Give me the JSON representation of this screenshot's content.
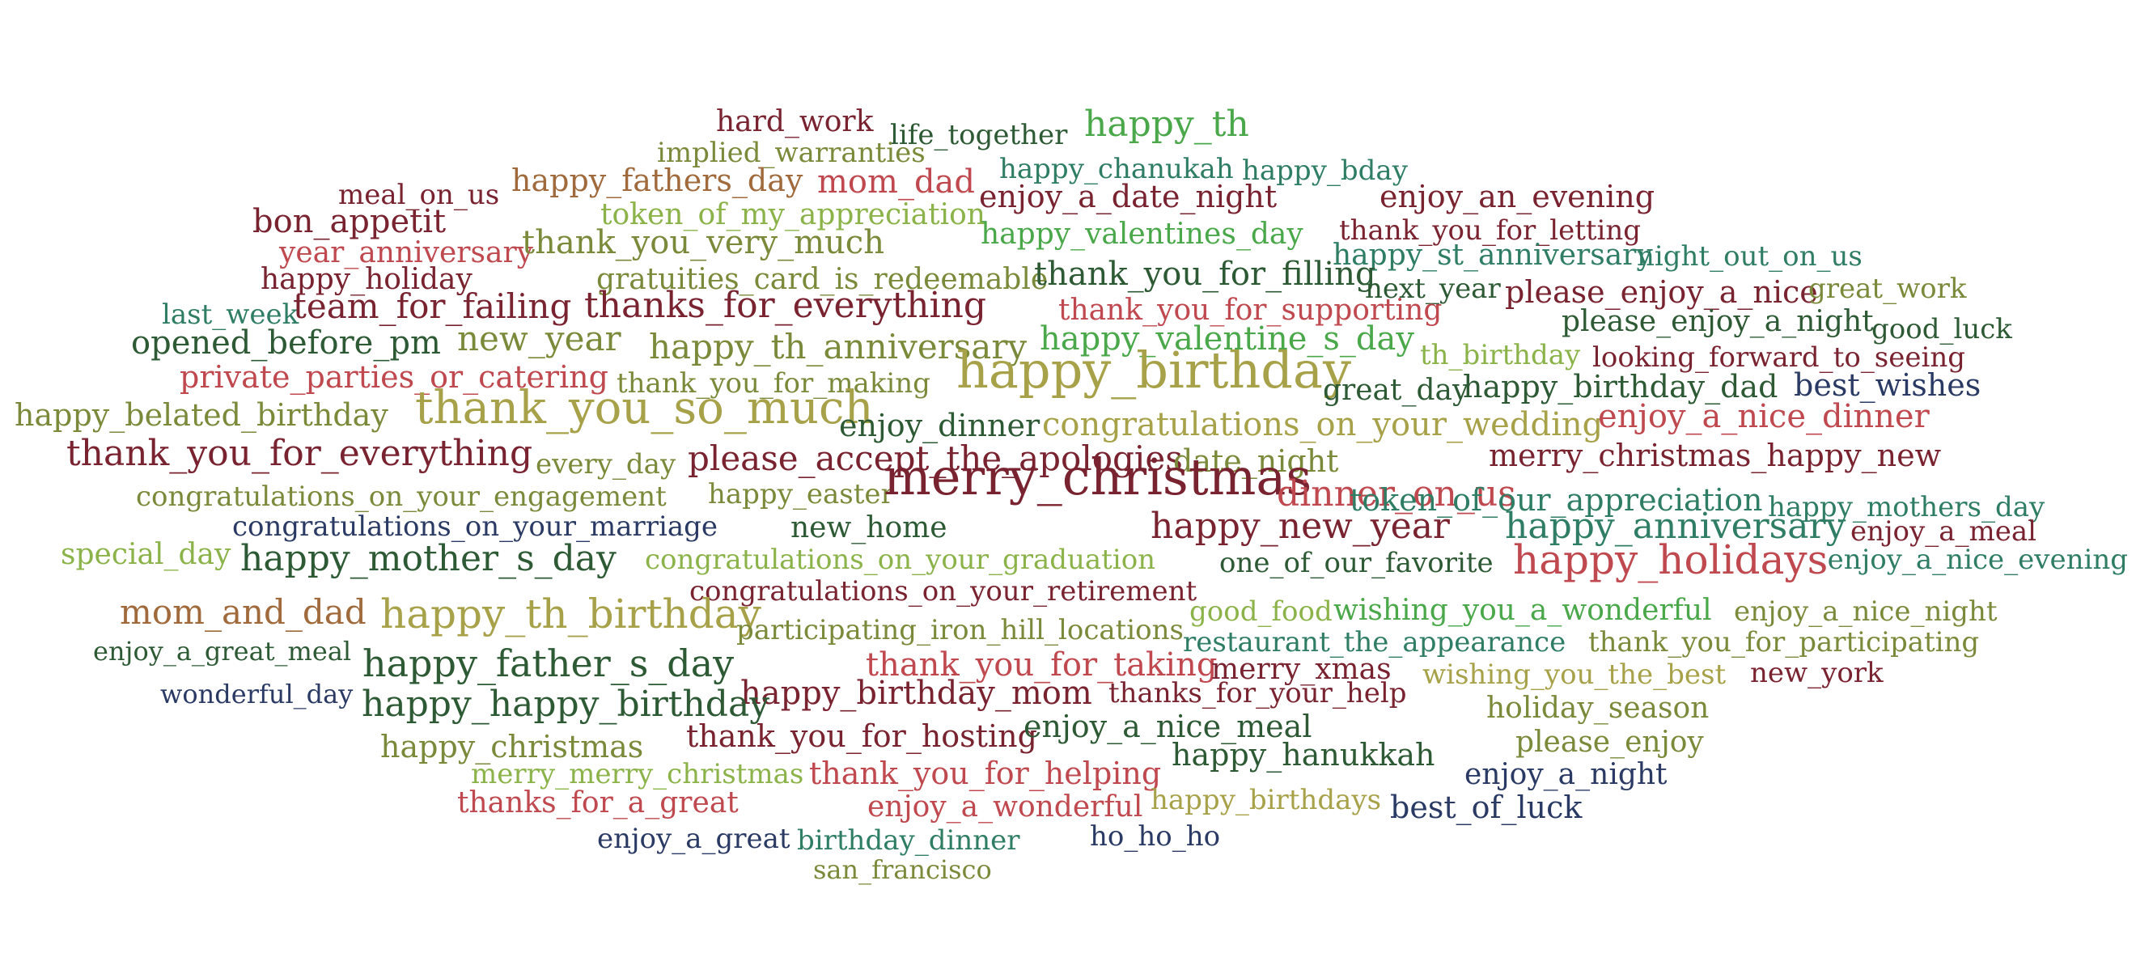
{
  "palette": {
    "maroon": "#7a2330",
    "rose": "#c0484f",
    "brown": "#a06a3c",
    "olive": "#7a8a3a",
    "khaki": "#a7a24a",
    "lightgreen": "#8bb34a",
    "green": "#4aa84a",
    "teal": "#2f7d64",
    "darkgreen": "#2d5a34",
    "navy": "#2a3a64"
  },
  "words": [
    {
      "text": "hard_work",
      "color": "maroon"
    },
    {
      "text": "life_together",
      "color": "darkgreen"
    },
    {
      "text": "happy_th",
      "color": "green"
    },
    {
      "text": "implied_warranties",
      "color": "olive"
    },
    {
      "text": "happy_chanukah",
      "color": "teal"
    },
    {
      "text": "happy_bday",
      "color": "teal"
    },
    {
      "text": "meal_on_us",
      "color": "maroon"
    },
    {
      "text": "happy_fathers_day",
      "color": "brown"
    },
    {
      "text": "mom_dad",
      "color": "rose"
    },
    {
      "text": "enjoy_a_date_night",
      "color": "maroon"
    },
    {
      "text": "enjoy_an_evening",
      "color": "maroon"
    },
    {
      "text": "token_of_my_appreciation",
      "color": "lightgreen"
    },
    {
      "text": "bon_appetit",
      "color": "maroon"
    },
    {
      "text": "happy_valentines_day",
      "color": "green"
    },
    {
      "text": "thank_you_for_letting",
      "color": "maroon"
    },
    {
      "text": "year_anniversary",
      "color": "rose"
    },
    {
      "text": "thank_you_very_much",
      "color": "olive"
    },
    {
      "text": "happy_st_anniversary",
      "color": "teal"
    },
    {
      "text": "night_out_on_us",
      "color": "teal"
    },
    {
      "text": "happy_holiday",
      "color": "maroon"
    },
    {
      "text": "gratuities_card_is_redeemable",
      "color": "olive"
    },
    {
      "text": "thank_you_for_filling",
      "color": "darkgreen"
    },
    {
      "text": "next_year",
      "color": "darkgreen"
    },
    {
      "text": "please_enjoy_a_nice",
      "color": "maroon"
    },
    {
      "text": "great_work",
      "color": "olive"
    },
    {
      "text": "last_week",
      "color": "teal"
    },
    {
      "text": "team_for_failing",
      "color": "maroon"
    },
    {
      "text": "thanks_for_everything",
      "color": "maroon"
    },
    {
      "text": "thank_you_for_supporting",
      "color": "rose"
    },
    {
      "text": "please_enjoy_a_night",
      "color": "darkgreen"
    },
    {
      "text": "good_luck",
      "color": "darkgreen"
    },
    {
      "text": "opened_before_pm",
      "color": "darkgreen"
    },
    {
      "text": "new_year",
      "color": "olive"
    },
    {
      "text": "happy_th_anniversary",
      "color": "olive"
    },
    {
      "text": "happy_valentine_s_day",
      "color": "green"
    },
    {
      "text": "th_birthday",
      "color": "lightgreen"
    },
    {
      "text": "looking_forward_to_seeing",
      "color": "maroon"
    },
    {
      "text": "private_parties_or_catering",
      "color": "rose"
    },
    {
      "text": "thank_you_for_making",
      "color": "olive"
    },
    {
      "text": "happy_birthday",
      "color": "khaki"
    },
    {
      "text": "great_day",
      "color": "darkgreen"
    },
    {
      "text": "happy_birthday_dad",
      "color": "darkgreen"
    },
    {
      "text": "best_wishes",
      "color": "navy"
    },
    {
      "text": "happy_belated_birthday",
      "color": "olive"
    },
    {
      "text": "thank_you_so_much",
      "color": "khaki"
    },
    {
      "text": "enjoy_dinner",
      "color": "darkgreen"
    },
    {
      "text": "congratulations_on_your_wedding",
      "color": "khaki"
    },
    {
      "text": "enjoy_a_nice_dinner",
      "color": "rose"
    },
    {
      "text": "thank_you_for_everything",
      "color": "maroon"
    },
    {
      "text": "every_day",
      "color": "olive"
    },
    {
      "text": "please_accept_the_apologies",
      "color": "maroon"
    },
    {
      "text": "date_night",
      "color": "olive"
    },
    {
      "text": "merry_christmas_happy_new",
      "color": "maroon"
    },
    {
      "text": "congratulations_on_your_engagement",
      "color": "olive"
    },
    {
      "text": "happy_easter",
      "color": "olive"
    },
    {
      "text": "merry_christmas",
      "color": "maroon"
    },
    {
      "text": "dinner_on_us",
      "color": "rose"
    },
    {
      "text": "token_of_our_appreciation",
      "color": "teal"
    },
    {
      "text": "happy_mothers_day",
      "color": "teal"
    },
    {
      "text": "congratulations_on_your_marriage",
      "color": "navy"
    },
    {
      "text": "new_home",
      "color": "darkgreen"
    },
    {
      "text": "happy_new_year",
      "color": "maroon"
    },
    {
      "text": "happy_anniversary",
      "color": "teal"
    },
    {
      "text": "enjoy_a_meal",
      "color": "maroon"
    },
    {
      "text": "special_day",
      "color": "lightgreen"
    },
    {
      "text": "happy_mother_s_day",
      "color": "darkgreen"
    },
    {
      "text": "congratulations_on_your_graduation",
      "color": "lightgreen"
    },
    {
      "text": "one_of_our_favorite",
      "color": "darkgreen"
    },
    {
      "text": "happy_holidays",
      "color": "rose"
    },
    {
      "text": "enjoy_a_nice_evening",
      "color": "teal"
    },
    {
      "text": "congratulations_on_your_retirement",
      "color": "maroon"
    },
    {
      "text": "mom_and_dad",
      "color": "brown"
    },
    {
      "text": "happy_th_birthday",
      "color": "khaki"
    },
    {
      "text": "good_food",
      "color": "lightgreen"
    },
    {
      "text": "wishing_you_a_wonderful",
      "color": "green"
    },
    {
      "text": "enjoy_a_nice_night",
      "color": "olive"
    },
    {
      "text": "participating_iron_hill_locations",
      "color": "olive"
    },
    {
      "text": "enjoy_a_great_meal",
      "color": "darkgreen"
    },
    {
      "text": "restaurant_the_appearance",
      "color": "teal"
    },
    {
      "text": "thank_you_for_participating",
      "color": "olive"
    },
    {
      "text": "happy_father_s_day",
      "color": "darkgreen"
    },
    {
      "text": "thank_you_for_taking",
      "color": "rose"
    },
    {
      "text": "merry_xmas",
      "color": "maroon"
    },
    {
      "text": "wishing_you_the_best",
      "color": "khaki"
    },
    {
      "text": "new_york",
      "color": "maroon"
    },
    {
      "text": "wonderful_day",
      "color": "navy"
    },
    {
      "text": "happy_birthday_mom",
      "color": "maroon"
    },
    {
      "text": "thanks_for_your_help",
      "color": "maroon"
    },
    {
      "text": "happy_happy_birthday",
      "color": "darkgreen"
    },
    {
      "text": "holiday_season",
      "color": "olive"
    },
    {
      "text": "thank_you_for_hosting",
      "color": "maroon"
    },
    {
      "text": "enjoy_a_nice_meal",
      "color": "darkgreen"
    },
    {
      "text": "happy_christmas",
      "color": "olive"
    },
    {
      "text": "please_enjoy",
      "color": "olive"
    },
    {
      "text": "happy_hanukkah",
      "color": "darkgreen"
    },
    {
      "text": "merry_merry_christmas",
      "color": "lightgreen"
    },
    {
      "text": "thank_you_for_helping",
      "color": "rose"
    },
    {
      "text": "enjoy_a_night",
      "color": "navy"
    },
    {
      "text": "happy_birthdays",
      "color": "khaki"
    },
    {
      "text": "thanks_for_a_great",
      "color": "rose"
    },
    {
      "text": "enjoy_a_wonderful",
      "color": "rose"
    },
    {
      "text": "best_of_luck",
      "color": "navy"
    },
    {
      "text": "enjoy_a_great",
      "color": "navy"
    },
    {
      "text": "birthday_dinner",
      "color": "teal"
    },
    {
      "text": "ho_ho_ho",
      "color": "navy"
    },
    {
      "text": "san_francisco",
      "color": "olive"
    }
  ]
}
